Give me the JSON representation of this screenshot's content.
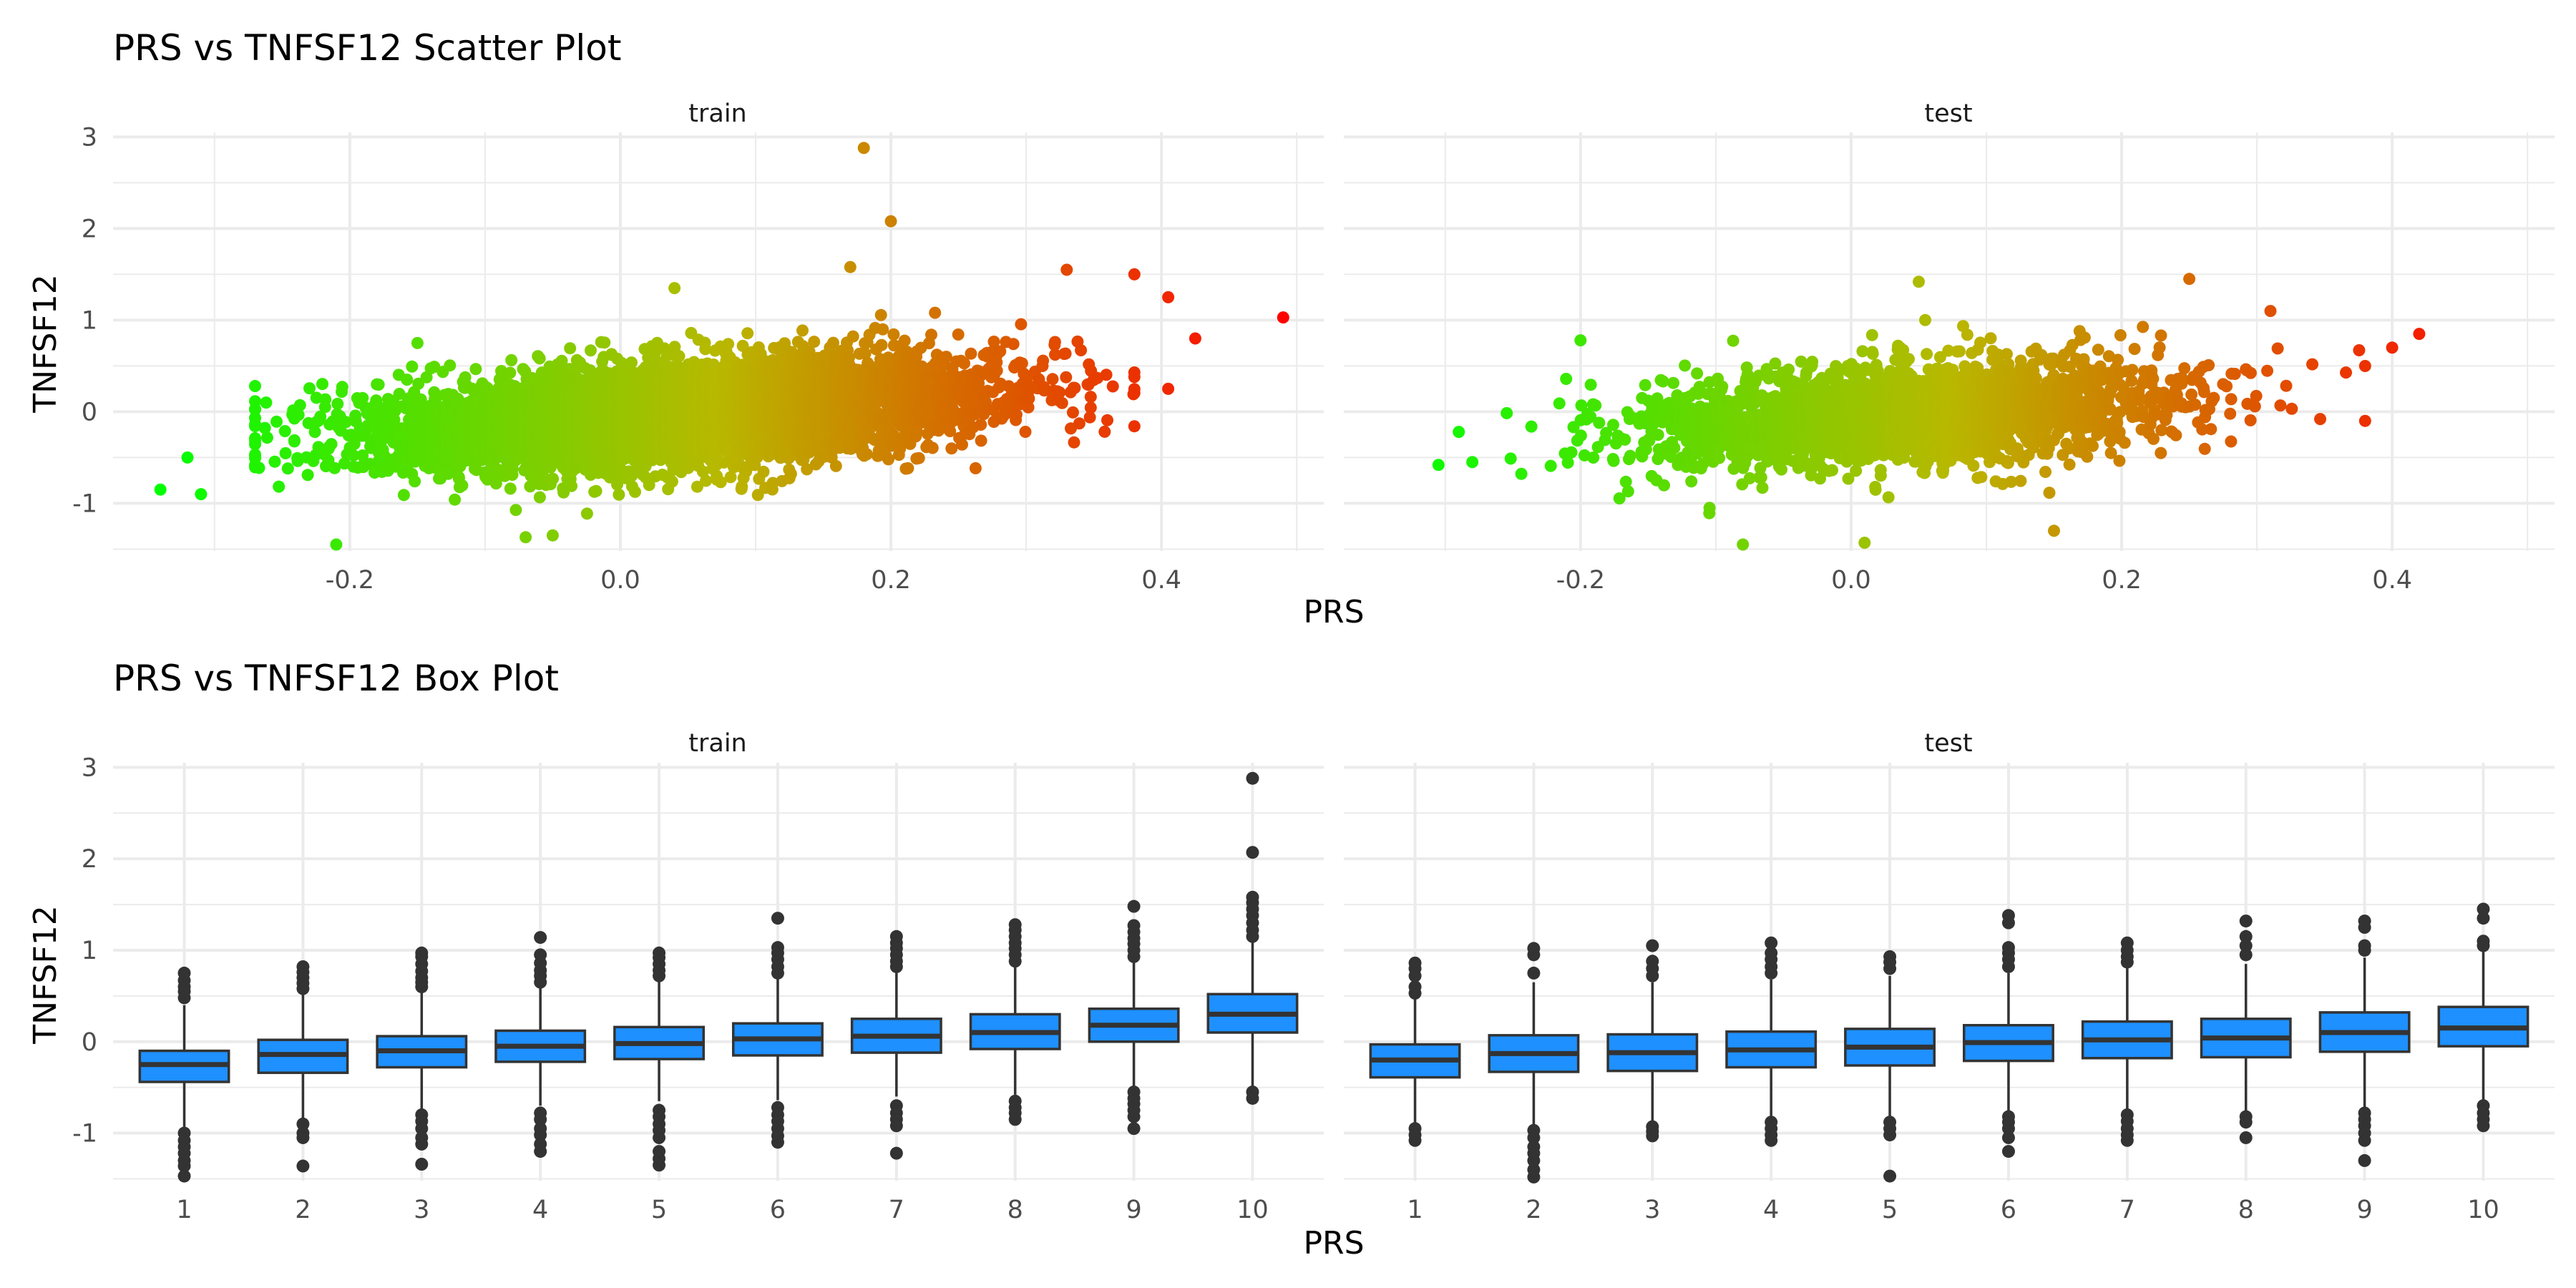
{
  "chart_data": [
    {
      "type": "scatter",
      "title": "PRS vs TNFSF12 Scatter Plot",
      "xlabel": "PRS",
      "ylabel": "TNFSF12",
      "facets": [
        "train",
        "test"
      ],
      "xlim": [
        -0.375,
        0.52
      ],
      "ylim": [
        -1.52,
        3.05
      ],
      "x_ticks": [
        -0.2,
        0.0,
        0.2,
        0.4
      ],
      "x_tick_labels": [
        "-0.2",
        "0.0",
        "0.2",
        "0.4"
      ],
      "y_ticks": [
        -1,
        0,
        1,
        2,
        3
      ],
      "y_tick_labels": [
        "-1",
        "0",
        "1",
        "2",
        "3"
      ],
      "grid": true,
      "legend": "none",
      "color_gradient": {
        "low": "#00ff00",
        "mid": "#b8b800",
        "high": "#ff0000",
        "range": [
          -0.34,
          0.49
        ]
      },
      "series": [
        {
          "facet": "train",
          "n_points": 6000,
          "trend": {
            "slope": 2.05,
            "intercept": -0.07,
            "sd": 0.27
          },
          "x_center": 0.04,
          "x_sd": 0.11,
          "outliers": [
            {
              "x": 0.18,
              "y": 2.88
            },
            {
              "x": 0.2,
              "y": 2.08
            },
            {
              "x": 0.49,
              "y": 1.03
            },
            {
              "x": 0.425,
              "y": 0.8
            },
            {
              "x": 0.405,
              "y": 1.25
            },
            {
              "x": 0.405,
              "y": 0.25
            },
            {
              "x": -0.34,
              "y": -0.85
            },
            {
              "x": -0.32,
              "y": -0.5
            },
            {
              "x": -0.31,
              "y": -0.9
            },
            {
              "x": -0.21,
              "y": -1.45
            },
            {
              "x": -0.07,
              "y": -1.37
            },
            {
              "x": -0.05,
              "y": -1.35
            },
            {
              "x": 0.17,
              "y": 1.58
            },
            {
              "x": 0.33,
              "y": 1.55
            },
            {
              "x": 0.38,
              "y": 1.5
            },
            {
              "x": 0.04,
              "y": 1.35
            },
            {
              "x": -0.15,
              "y": 0.75
            }
          ]
        },
        {
          "facet": "test",
          "n_points": 2400,
          "trend": {
            "slope": 1.55,
            "intercept": -0.06,
            "sd": 0.28
          },
          "x_center": 0.04,
          "x_sd": 0.1,
          "outliers": [
            {
              "x": 0.42,
              "y": 0.85
            },
            {
              "x": 0.4,
              "y": 0.7
            },
            {
              "x": 0.38,
              "y": -0.1
            },
            {
              "x": -0.305,
              "y": -0.58
            },
            {
              "x": -0.29,
              "y": -0.22
            },
            {
              "x": -0.28,
              "y": -0.55
            },
            {
              "x": -0.08,
              "y": -1.45
            },
            {
              "x": 0.01,
              "y": -1.43
            },
            {
              "x": 0.15,
              "y": -1.3
            },
            {
              "x": 0.05,
              "y": 1.42
            },
            {
              "x": 0.25,
              "y": 1.45
            },
            {
              "x": -0.2,
              "y": 0.78
            },
            {
              "x": 0.31,
              "y": 1.1
            }
          ]
        }
      ]
    },
    {
      "type": "box",
      "title": "PRS vs TNFSF12 Box Plot",
      "xlabel": "PRS",
      "ylabel": "TNFSF12",
      "facets": [
        "train",
        "test"
      ],
      "categories": [
        "1",
        "2",
        "3",
        "4",
        "5",
        "6",
        "7",
        "8",
        "9",
        "10"
      ],
      "ylim": [
        -1.52,
        3.05
      ],
      "y_ticks": [
        -1,
        0,
        1,
        2,
        3
      ],
      "y_tick_labels": [
        "-1",
        "0",
        "1",
        "2",
        "3"
      ],
      "box_color": "#1e90ff",
      "grid": true,
      "series": [
        {
          "facet": "train",
          "boxes": [
            {
              "q1": -0.44,
              "median": -0.25,
              "q3": -0.1,
              "whisker_low": -0.93,
              "whisker_high": 0.4,
              "outliers": [
                0.48,
                0.55,
                0.6,
                0.67,
                0.75,
                -1.0,
                -1.08,
                -1.15,
                -1.22,
                -1.3,
                -1.36,
                -1.47
              ]
            },
            {
              "q1": -0.34,
              "median": -0.14,
              "q3": 0.02,
              "whisker_low": -0.85,
              "whisker_high": 0.53,
              "outliers": [
                0.58,
                0.64,
                0.7,
                0.76,
                0.82,
                -0.9,
                -1.0,
                -1.05,
                -1.36
              ]
            },
            {
              "q1": -0.28,
              "median": -0.1,
              "q3": 0.06,
              "whisker_low": -0.76,
              "whisker_high": 0.55,
              "outliers": [
                0.6,
                0.65,
                0.7,
                0.77,
                0.85,
                0.93,
                0.97,
                -0.8,
                -0.87,
                -0.95,
                -1.05,
                -1.12,
                -1.34
              ]
            },
            {
              "q1": -0.22,
              "median": -0.05,
              "q3": 0.12,
              "whisker_low": -0.7,
              "whisker_high": 0.6,
              "outliers": [
                0.65,
                0.72,
                0.78,
                0.86,
                0.95,
                1.14,
                -0.78,
                -0.85,
                -0.95,
                -1.02,
                -1.12,
                -1.2
              ]
            },
            {
              "q1": -0.19,
              "median": -0.02,
              "q3": 0.16,
              "whisker_low": -0.65,
              "whisker_high": 0.67,
              "outliers": [
                0.72,
                0.78,
                0.85,
                0.92,
                0.97,
                -0.75,
                -0.82,
                -0.9,
                -0.97,
                -1.05,
                -1.2,
                -1.28,
                -1.35
              ]
            },
            {
              "q1": -0.15,
              "median": 0.03,
              "q3": 0.2,
              "whisker_low": -0.64,
              "whisker_high": 0.7,
              "outliers": [
                0.75,
                0.82,
                0.9,
                0.97,
                1.03,
                1.35,
                -0.72,
                -0.8,
                -0.87,
                -0.95,
                -1.03,
                -1.1
              ]
            },
            {
              "q1": -0.12,
              "median": 0.06,
              "q3": 0.25,
              "whisker_low": -0.6,
              "whisker_high": 0.77,
              "outliers": [
                0.82,
                0.88,
                0.95,
                1.02,
                1.08,
                1.15,
                -0.7,
                -0.78,
                -0.85,
                -0.92,
                -1.22
              ]
            },
            {
              "q1": -0.08,
              "median": 0.1,
              "q3": 0.3,
              "whisker_low": -0.58,
              "whisker_high": 0.83,
              "outliers": [
                0.88,
                0.95,
                1.02,
                1.08,
                1.15,
                1.22,
                1.28,
                -0.65,
                -0.72,
                -0.78,
                -0.85
              ]
            },
            {
              "q1": 0.0,
              "median": 0.18,
              "q3": 0.36,
              "whisker_low": -0.5,
              "whisker_high": 0.88,
              "outliers": [
                0.93,
                1.0,
                1.07,
                1.13,
                1.2,
                1.27,
                1.48,
                -0.55,
                -0.62,
                -0.68,
                -0.75,
                -0.82,
                -0.95
              ]
            },
            {
              "q1": 0.1,
              "median": 0.3,
              "q3": 0.52,
              "whisker_low": -0.5,
              "whisker_high": 1.1,
              "outliers": [
                1.15,
                1.22,
                1.3,
                1.38,
                1.45,
                1.52,
                1.58,
                2.07,
                2.88,
                -0.55,
                -0.62
              ]
            }
          ]
        },
        {
          "facet": "test",
          "boxes": [
            {
              "q1": -0.39,
              "median": -0.2,
              "q3": -0.03,
              "whisker_low": -0.9,
              "whisker_high": 0.48,
              "outliers": [
                0.53,
                0.6,
                0.72,
                0.8,
                0.86,
                -0.95,
                -1.02,
                -1.08
              ]
            },
            {
              "q1": -0.33,
              "median": -0.13,
              "q3": 0.07,
              "whisker_low": -0.92,
              "whisker_high": 0.65,
              "outliers": [
                0.75,
                0.95,
                1.02,
                -0.97,
                -1.05,
                -1.15,
                -1.22,
                -1.3,
                -1.4,
                -1.48
              ]
            },
            {
              "q1": -0.32,
              "median": -0.12,
              "q3": 0.08,
              "whisker_low": -0.9,
              "whisker_high": 0.65,
              "outliers": [
                0.72,
                0.8,
                0.88,
                1.05,
                -0.93,
                -0.98,
                -1.03
              ]
            },
            {
              "q1": -0.28,
              "median": -0.09,
              "q3": 0.11,
              "whisker_low": -0.85,
              "whisker_high": 0.68,
              "outliers": [
                0.75,
                0.82,
                0.9,
                0.97,
                1.08,
                -0.88,
                -0.95,
                -1.02,
                -1.08
              ]
            },
            {
              "q1": -0.26,
              "median": -0.06,
              "q3": 0.14,
              "whisker_low": -0.85,
              "whisker_high": 0.72,
              "outliers": [
                0.8,
                0.87,
                0.93,
                -0.88,
                -0.95,
                -1.02,
                -1.47
              ]
            },
            {
              "q1": -0.21,
              "median": -0.01,
              "q3": 0.18,
              "whisker_low": -0.78,
              "whisker_high": 0.75,
              "outliers": [
                0.82,
                0.9,
                0.97,
                1.03,
                1.3,
                1.38,
                -0.82,
                -0.88,
                -0.95,
                -1.05,
                -1.2
              ]
            },
            {
              "q1": -0.18,
              "median": 0.02,
              "q3": 0.22,
              "whisker_low": -0.75,
              "whisker_high": 0.8,
              "outliers": [
                0.87,
                0.93,
                1.0,
                1.08,
                -0.8,
                -0.87,
                -0.95,
                -1.02,
                -1.08
              ]
            },
            {
              "q1": -0.17,
              "median": 0.04,
              "q3": 0.25,
              "whisker_low": -0.78,
              "whisker_high": 0.85,
              "outliers": [
                0.95,
                1.05,
                1.15,
                1.32,
                -0.82,
                -0.88,
                -1.05
              ]
            },
            {
              "q1": -0.11,
              "median": 0.1,
              "q3": 0.32,
              "whisker_low": -0.72,
              "whisker_high": 0.92,
              "outliers": [
                1.0,
                1.05,
                1.25,
                1.32,
                -0.78,
                -0.85,
                -0.92,
                -1.0,
                -1.08,
                -1.3
              ]
            },
            {
              "q1": -0.05,
              "median": 0.15,
              "q3": 0.38,
              "whisker_low": -0.65,
              "whisker_high": 1.0,
              "outliers": [
                1.05,
                1.1,
                1.35,
                1.45,
                -0.7,
                -0.78,
                -0.85,
                -0.92
              ]
            }
          ]
        }
      ]
    }
  ]
}
